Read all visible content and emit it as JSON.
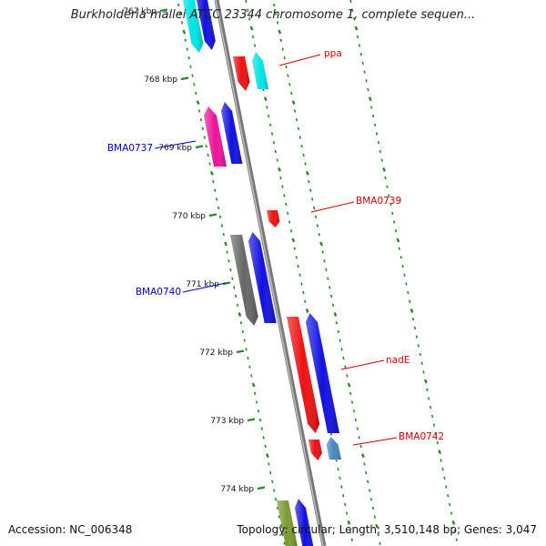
{
  "title": "Burkholderia mallei ATCC 23344 chromosome 1, complete sequen...",
  "footer": {
    "accession": "Accession: NC_006348",
    "summary": "Topology: circular; Length: 3,510,148 bp; Genes: 3,047"
  },
  "colors": {
    "backbone": "#888888",
    "tick_marks": "#2a8a2a",
    "label_forward": "#cc0000",
    "label_reverse": "#0000cc",
    "kbp_label": "#111111"
  },
  "kbp_ticks": [
    {
      "label": "767 kbp"
    },
    {
      "label": "768 kbp"
    },
    {
      "label": "769 kbp"
    },
    {
      "label": "770 kbp"
    },
    {
      "label": "771 kbp"
    },
    {
      "label": "772 kbp"
    },
    {
      "label": "773 kbp"
    },
    {
      "label": "774 kbp"
    }
  ],
  "gene_labels": [
    {
      "name": "ppa",
      "strand": "forward"
    },
    {
      "name": "BMA0737",
      "strand": "reverse"
    },
    {
      "name": "BMA0739",
      "strand": "forward"
    },
    {
      "name": "BMA0740",
      "strand": "reverse"
    },
    {
      "name": "nadE",
      "strand": "forward"
    },
    {
      "name": "BMA0742",
      "strand": "forward"
    }
  ],
  "features": [
    {
      "name": "feature-cyan-top-left",
      "color": "#00e5e5"
    },
    {
      "name": "feature-blue-top-left",
      "color": "#1010e0"
    },
    {
      "name": "feature-red-ppa",
      "color": "#ee1111"
    },
    {
      "name": "feature-cyan-ppa",
      "color": "#00e5e5"
    },
    {
      "name": "feature-magenta-bma0737",
      "color": "#ee1199"
    },
    {
      "name": "feature-blue-bma0737",
      "color": "#1010e0"
    },
    {
      "name": "feature-red-bma0739",
      "color": "#ee1111"
    },
    {
      "name": "feature-gray-bma0740",
      "color": "#666666"
    },
    {
      "name": "feature-blue-bma0740",
      "color": "#1010e0"
    },
    {
      "name": "feature-red-nade",
      "color": "#ee1111"
    },
    {
      "name": "feature-blue-nade",
      "color": "#1010e0"
    },
    {
      "name": "feature-red-bma0742",
      "color": "#ee1111"
    },
    {
      "name": "feature-steel-bma0742",
      "color": "#4a86c0"
    },
    {
      "name": "feature-olive-bottom",
      "color": "#7a9a30"
    },
    {
      "name": "feature-blue-bottom",
      "color": "#1010e0"
    }
  ]
}
